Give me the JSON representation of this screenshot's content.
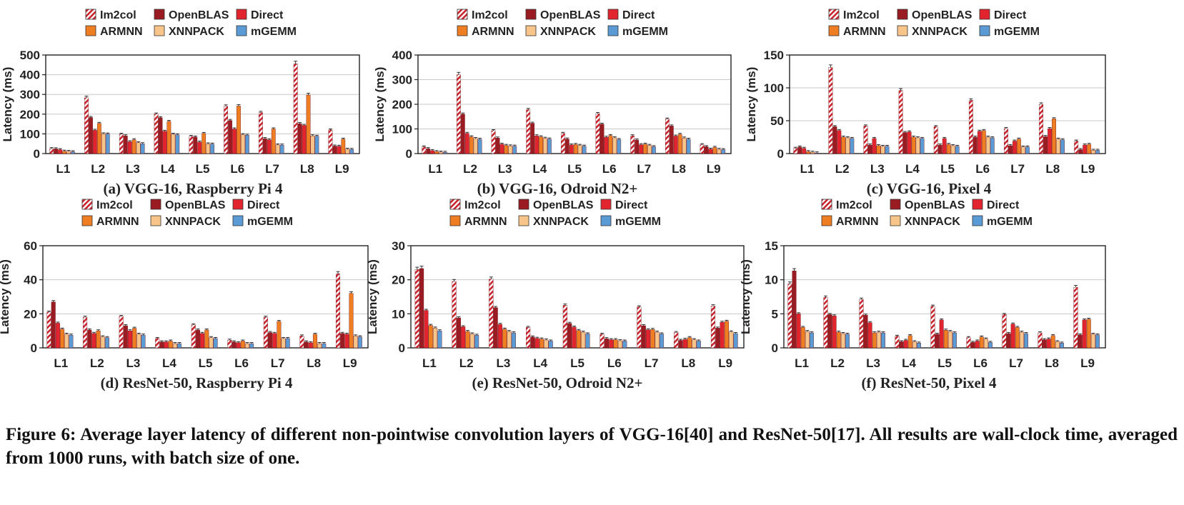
{
  "figure": {
    "caption": "Figure 6: Average layer latency of different non-pointwise convolution layers of VGG-16[40] and ResNet-50[17]. All results are wall-clock time, averaged from 1000 runs, with batch size of one."
  },
  "series_styles": [
    {
      "name": "Im2col",
      "color": "#c9252f",
      "hatched": true
    },
    {
      "name": "OpenBLAS",
      "color": "#9a1c22",
      "hatched": false
    },
    {
      "name": "Direct",
      "color": "#e2242e",
      "hatched": false
    },
    {
      "name": "ARMNN",
      "color": "#ef7d22",
      "hatched": false
    },
    {
      "name": "XNNPACK",
      "color": "#f7c48a",
      "hatched": false
    },
    {
      "name": "mGEMM",
      "color": "#5b9bd5",
      "hatched": false
    }
  ],
  "chart_data": [
    {
      "type": "bar",
      "title": "(a) VGG-16, Raspberry Pi 4",
      "ylabel": "Latency (ms)",
      "ylim": [
        0,
        500
      ],
      "yticks": [
        "0",
        "100",
        "200",
        "300",
        "400",
        "500"
      ],
      "categories": [
        "L1",
        "L2",
        "L3",
        "L4",
        "L5",
        "L6",
        "L7",
        "L8",
        "L9"
      ],
      "grid": true,
      "legend": "top",
      "series": [
        {
          "name": "Im2col",
          "values": [
            25,
            283,
            98,
            200,
            87,
            240,
            208,
            455,
            120
          ]
        },
        {
          "name": "OpenBLAS",
          "values": [
            24,
            183,
            90,
            182,
            84,
            168,
            76,
            152,
            38
          ]
        },
        {
          "name": "Direct",
          "values": [
            20,
            118,
            60,
            113,
            58,
            125,
            70,
            143,
            37
          ]
        },
        {
          "name": "ARMNN",
          "values": [
            12,
            153,
            70,
            163,
            102,
            241,
            125,
            297,
            73
          ]
        },
        {
          "name": "XNNPACK",
          "values": [
            11,
            100,
            55,
            98,
            49,
            96,
            44,
            90,
            22
          ]
        },
        {
          "name": "mGEMM",
          "values": [
            9,
            99,
            50,
            95,
            48,
            93,
            43,
            88,
            21
          ]
        }
      ]
    },
    {
      "type": "bar",
      "title": "(b) VGG-16, Odroid N2+",
      "ylabel": "Latency (ms)",
      "ylim": [
        0,
        400
      ],
      "yticks": [
        "0",
        "100",
        "200",
        "300",
        "400"
      ],
      "categories": [
        "L1",
        "L2",
        "L3",
        "L4",
        "L5",
        "L6",
        "L7",
        "L8",
        "L9"
      ],
      "grid": true,
      "legend": "top",
      "series": [
        {
          "name": "Im2col",
          "values": [
            27,
            320,
            93,
            178,
            82,
            162,
            72,
            140,
            36
          ]
        },
        {
          "name": "OpenBLAS",
          "values": [
            20,
            160,
            63,
            123,
            59,
            119,
            55,
            112,
            28
          ]
        },
        {
          "name": "Direct",
          "values": [
            12,
            82,
            38,
            72,
            35,
            66,
            36,
            71,
            18
          ]
        },
        {
          "name": "ARMNN",
          "values": [
            8,
            68,
            33,
            68,
            37,
            73,
            38,
            78,
            25
          ]
        },
        {
          "name": "XNNPACK",
          "values": [
            6,
            61,
            31,
            62,
            33,
            64,
            33,
            63,
            17
          ]
        },
        {
          "name": "mGEMM",
          "values": [
            5,
            58,
            30,
            59,
            30,
            57,
            28,
            58,
            16
          ]
        }
      ]
    },
    {
      "type": "bar",
      "title": "(c) VGG-16, Pixel 4",
      "ylabel": "Latency (ms)",
      "ylim": [
        0,
        150
      ],
      "yticks": [
        "0",
        "50",
        "100",
        "150"
      ],
      "categories": [
        "L1",
        "L2",
        "L3",
        "L4",
        "L5",
        "L6",
        "L7",
        "L8",
        "L9"
      ],
      "grid": true,
      "legend": "top",
      "series": [
        {
          "name": "Im2col",
          "values": [
            8,
            131,
            42,
            96,
            41,
            81,
            38,
            75,
            19
          ]
        },
        {
          "name": "OpenBLAS",
          "values": [
            10,
            41,
            13,
            32,
            13,
            25,
            12,
            26,
            6
          ]
        },
        {
          "name": "Direct",
          "values": [
            8,
            35,
            23,
            33,
            23,
            34,
            19,
            38,
            13
          ]
        },
        {
          "name": "ARMNN",
          "values": [
            3,
            25,
            12,
            25,
            14,
            35,
            22,
            53,
            14
          ]
        },
        {
          "name": "XNNPACK",
          "values": [
            2,
            24,
            11,
            24,
            12,
            25,
            10,
            22,
            5
          ]
        },
        {
          "name": "mGEMM",
          "values": [
            1,
            23,
            11,
            23,
            11,
            24,
            10,
            21,
            5
          ]
        }
      ]
    },
    {
      "type": "bar",
      "title": "(d) ResNet-50, Raspberry Pi 4",
      "ylabel": "Latency (ms)",
      "ylim": [
        0,
        60
      ],
      "yticks": [
        "0",
        "20",
        "40",
        "60"
      ],
      "categories": [
        "L1",
        "L2",
        "L3",
        "L4",
        "L5",
        "L6",
        "L7",
        "L8",
        "L9"
      ],
      "grid": true,
      "legend": "top",
      "series": [
        {
          "name": "Im2col",
          "values": [
            21,
            18,
            18.5,
            5.5,
            13.5,
            4.5,
            18,
            7,
            43.5
          ]
        },
        {
          "name": "OpenBLAS",
          "values": [
            27,
            10.5,
            13,
            3.5,
            10.5,
            3.5,
            9,
            3.5,
            8.5
          ]
        },
        {
          "name": "Direct",
          "values": [
            14.5,
            8.5,
            10,
            3.5,
            8.5,
            3,
            8.5,
            3,
            8
          ]
        },
        {
          "name": "ARMNN",
          "values": [
            11,
            10,
            11.5,
            4,
            10.5,
            4,
            15.5,
            8,
            32
          ]
        },
        {
          "name": "XNNPACK",
          "values": [
            8,
            6.5,
            8,
            2.5,
            6,
            2.5,
            5.5,
            2.5,
            7
          ]
        },
        {
          "name": "mGEMM",
          "values": [
            7.5,
            6,
            7.5,
            2.5,
            5.5,
            2.5,
            5.5,
            2.5,
            6.5
          ]
        }
      ]
    },
    {
      "type": "bar",
      "title": "(e) ResNet-50, Odroid N2+",
      "ylabel": "Latency (ms)",
      "ylim": [
        0,
        30
      ],
      "yticks": [
        "0",
        "10",
        "20",
        "30"
      ],
      "categories": [
        "L1",
        "L2",
        "L3",
        "L4",
        "L5",
        "L6",
        "L7",
        "L8",
        "L9"
      ],
      "grid": true,
      "legend": "top",
      "series": [
        {
          "name": "Im2col",
          "values": [
            23,
            19.5,
            20.2,
            6,
            12.5,
            4,
            12,
            4.5,
            12.3
          ]
        },
        {
          "name": "OpenBLAS",
          "values": [
            23.3,
            8.8,
            11.8,
            3.2,
            7.2,
            2.7,
            6.5,
            2.2,
            5.8
          ]
        },
        {
          "name": "Direct",
          "values": [
            11,
            6.2,
            6.9,
            2.8,
            6.1,
            2.4,
            5.3,
            2.5,
            7.5
          ]
        },
        {
          "name": "ARMNN",
          "values": [
            6.6,
            4.8,
            5.5,
            2.6,
            5.1,
            2.4,
            5.4,
            3,
            7.8
          ]
        },
        {
          "name": "XNNPACK",
          "values": [
            5.8,
            4.1,
            4.8,
            2.3,
            4.6,
            2.1,
            4.6,
            2.4,
            4.7
          ]
        },
        {
          "name": "mGEMM",
          "values": [
            5,
            3.7,
            4.4,
            2,
            4.1,
            2,
            4.1,
            2,
            4.2
          ]
        }
      ]
    },
    {
      "type": "bar",
      "title": "(f) ResNet-50, Pixel 4",
      "ylabel": "Latency (ms)",
      "ylim": [
        0,
        15
      ],
      "yticks": [
        "0",
        "5",
        "10",
        "15"
      ],
      "categories": [
        "L1",
        "L2",
        "L3",
        "L4",
        "L5",
        "L6",
        "L7",
        "L8",
        "L9"
      ],
      "grid": true,
      "legend": "top",
      "series": [
        {
          "name": "Im2col",
          "values": [
            9.4,
            7.4,
            7.1,
            1.7,
            6.1,
            1.5,
            4.9,
            2.2,
            8.9
          ]
        },
        {
          "name": "OpenBLAS",
          "values": [
            11.3,
            4.9,
            4.8,
            0.9,
            2,
            0.8,
            2.1,
            1.2,
            1.9
          ]
        },
        {
          "name": "Direct",
          "values": [
            5,
            4.7,
            3.7,
            1.1,
            4.1,
            1,
            3.5,
            1.3,
            4.1
          ]
        },
        {
          "name": "ARMNN",
          "values": [
            3,
            2.3,
            2.2,
            1.8,
            2.6,
            1.6,
            3,
            1.8,
            4.2
          ]
        },
        {
          "name": "XNNPACK",
          "values": [
            2.4,
            2.1,
            2.3,
            0.9,
            2.4,
            1.3,
            2.3,
            0.9,
            2
          ]
        },
        {
          "name": "mGEMM",
          "values": [
            2.2,
            2,
            2.2,
            0.7,
            2.2,
            0.8,
            2.1,
            0.7,
            1.9
          ]
        }
      ]
    }
  ]
}
